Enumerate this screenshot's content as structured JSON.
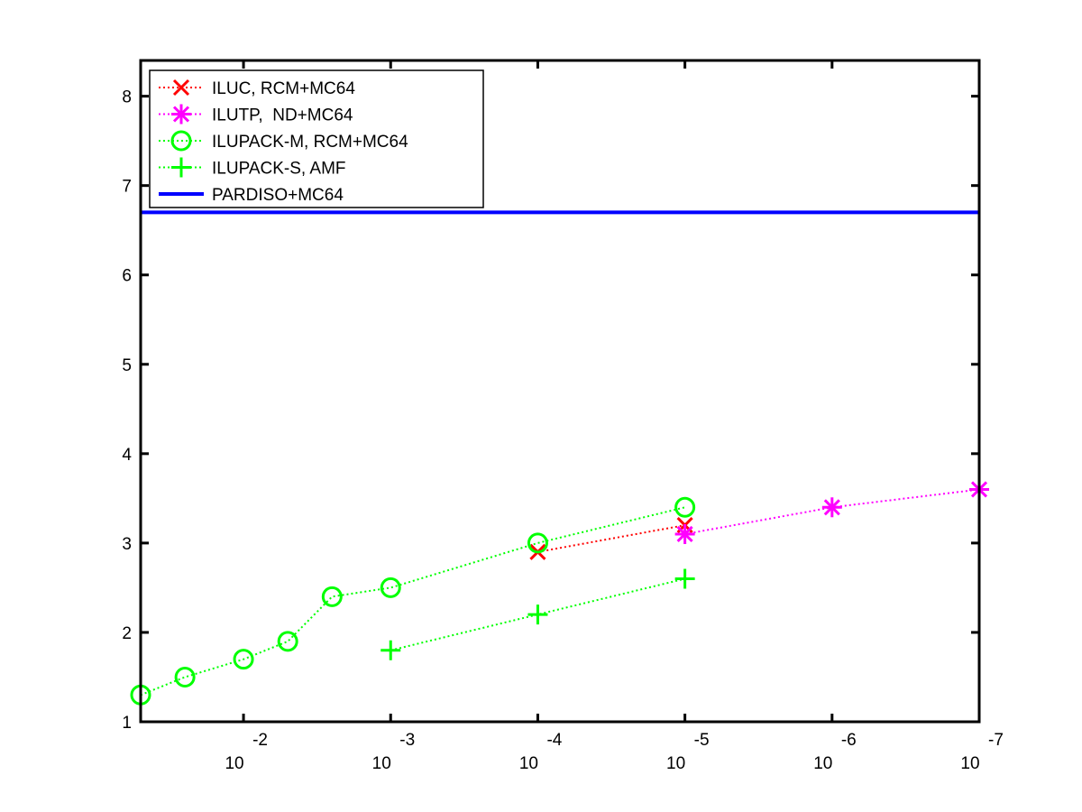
{
  "chart_data": {
    "type": "line",
    "x_scale": "log_reversed",
    "xlim": [
      0.05,
      1e-07
    ],
    "ylim": [
      1,
      8.4
    ],
    "grid": false,
    "legend_position": "top-left",
    "y_ticks": [
      {
        "value": 1,
        "label": "1"
      },
      {
        "value": 2,
        "label": "2"
      },
      {
        "value": 3,
        "label": "3"
      },
      {
        "value": 4,
        "label": "4"
      },
      {
        "value": 5,
        "label": "5"
      },
      {
        "value": 6,
        "label": "6"
      },
      {
        "value": 7,
        "label": "7"
      },
      {
        "value": 8,
        "label": "8"
      }
    ],
    "x_ticks": [
      {
        "value": 0.01,
        "base": "10",
        "exponent": "-2"
      },
      {
        "value": 0.001,
        "base": "10",
        "exponent": "-3"
      },
      {
        "value": 0.0001,
        "base": "10",
        "exponent": "-4"
      },
      {
        "value": 1e-05,
        "base": "10",
        "exponent": "-5"
      },
      {
        "value": 1e-06,
        "base": "10",
        "exponent": "-6"
      },
      {
        "value": 1e-07,
        "base": "10",
        "exponent": "-7"
      }
    ],
    "series": [
      {
        "name": "ILUC, RCM+MC64",
        "color": "#ff0000",
        "marker": "x",
        "line": "dotted",
        "x": [
          0.0001,
          1e-05
        ],
        "y": [
          2.9,
          3.2
        ]
      },
      {
        "name": "ILUTP,  ND+MC64",
        "color": "#ff00ff",
        "marker": "star",
        "line": "dotted",
        "x": [
          1e-05,
          1e-06,
          1e-07
        ],
        "y": [
          3.1,
          3.4,
          3.6
        ]
      },
      {
        "name": "ILUPACK-M, RCM+MC64",
        "color": "#00ff00",
        "marker": "circle",
        "line": "dotted",
        "x": [
          0.05,
          0.025,
          0.01,
          0.005,
          0.0025,
          0.001,
          0.0001,
          1e-05
        ],
        "y": [
          1.3,
          1.5,
          1.7,
          1.9,
          2.4,
          2.5,
          3.0,
          3.4
        ]
      },
      {
        "name": "ILUPACK-S, AMF",
        "color": "#00ff00",
        "marker": "plus",
        "line": "dotted",
        "x": [
          0.001,
          0.0001,
          1e-05
        ],
        "y": [
          1.8,
          2.2,
          2.6
        ]
      },
      {
        "name": "PARDISO+MC64",
        "color": "#0000ff",
        "marker": "none",
        "line": "solid",
        "x": [
          0.05,
          1e-07
        ],
        "y": [
          6.7,
          6.7
        ]
      }
    ]
  }
}
